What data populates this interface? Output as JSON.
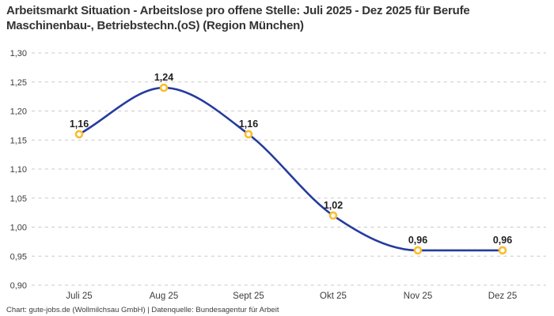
{
  "chart_data": {
    "type": "line",
    "title": "Arbeitsmarkt Situation - Arbeitslose pro offene Stelle: Juli 2025 - Dez 2025 für Berufe Maschinenbau-, Betriebstechn.(oS) (Region München)",
    "categories": [
      "Juli 25",
      "Aug 25",
      "Sept 25",
      "Okt 25",
      "Nov 25",
      "Dez 25"
    ],
    "values": [
      1.16,
      1.24,
      1.16,
      1.02,
      0.96,
      0.96
    ],
    "value_labels": [
      "1,16",
      "1,24",
      "1,16",
      "1,02",
      "0,96",
      "0,96"
    ],
    "xlabel": "",
    "ylabel": "",
    "ylim": [
      0.9,
      1.3
    ],
    "ytick_values": [
      1.3,
      1.25,
      1.2,
      1.15,
      1.1,
      1.05,
      1.0,
      0.95,
      0.9
    ],
    "ytick_labels": [
      "1,30",
      "1,25",
      "1,20",
      "1,15",
      "1,10",
      "1,05",
      "1,00",
      "0,95",
      "0,90"
    ],
    "grid": "horizontal-dashed",
    "legend": "none",
    "line_style": "smooth",
    "marker_style": "open-circle",
    "colors": {
      "line": "#253B9E",
      "marker_stroke": "#F7BE32",
      "marker_fill": "#FFFFFF",
      "grid": "#C9C9C9",
      "tick_text": "#3C3C3C",
      "data_label_text": "#1F1F1F",
      "title_text": "#333333",
      "source_text": "#3C3C3C"
    },
    "source": "Chart: gute-jobs.de (Wollmilchsau GmbH) | Datenquelle: Bundesagentur für Arbeit"
  }
}
